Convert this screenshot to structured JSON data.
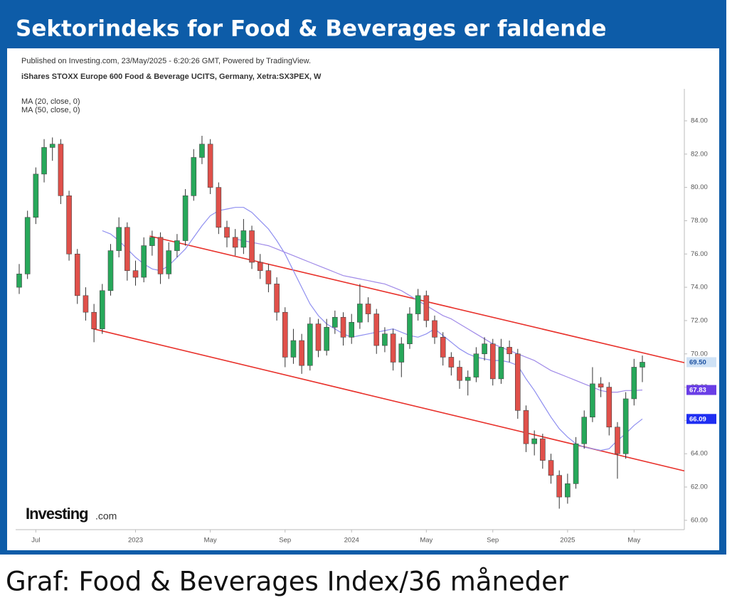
{
  "header": {
    "title": "Sektorindeks for Food & Beverages er faldende"
  },
  "chart_data": {
    "type": "candlestick",
    "source": "Published on Investing.com, 23/May/2025 - 6:20:26 GMT, Powered by TradingView.",
    "instrument": "iShares STOXX Europe 600 Food & Beverage UCITS, Germany, Xetra:SX3PEX, W",
    "categories": [
      null,
      null,
      "Jul",
      null,
      null,
      null,
      null,
      null,
      null,
      null,
      null,
      null,
      null,
      null,
      "2023",
      null,
      null,
      null,
      null,
      null,
      null,
      null,
      null,
      "May",
      null,
      null,
      null,
      null,
      null,
      null,
      null,
      null,
      "Sep",
      null,
      null,
      null,
      null,
      null,
      null,
      null,
      "2024",
      null,
      null,
      null,
      null,
      null,
      null,
      null,
      null,
      "May",
      null,
      null,
      null,
      null,
      null,
      null,
      null,
      "Sep",
      null,
      null,
      null,
      null,
      null,
      null,
      null,
      null,
      "2025",
      null,
      null,
      null,
      null,
      null,
      null,
      null,
      "May",
      null
    ],
    "open": [
      74.0,
      74.8,
      78.2,
      80.8,
      82.4,
      82.6,
      79.5,
      76.0,
      73.5,
      72.5,
      71.5,
      73.8,
      76.2,
      77.6,
      75.0,
      74.6,
      76.5,
      77.0,
      74.8,
      76.2,
      76.8,
      79.5,
      81.8,
      82.6,
      80.0,
      77.6,
      77.0,
      76.4,
      77.4,
      75.5,
      75.0,
      74.2,
      72.5,
      69.8,
      70.8,
      69.3,
      71.8,
      70.2,
      71.6,
      72.2,
      71.0,
      71.9,
      73.0,
      72.4,
      70.5,
      71.2,
      69.5,
      70.6,
      72.4,
      73.5,
      72.0,
      71.0,
      69.8,
      69.2,
      68.4,
      68.6,
      70.0,
      70.6,
      68.5,
      70.4,
      70.0,
      66.6,
      64.6,
      64.9,
      63.6,
      62.7,
      61.4,
      62.2,
      64.6,
      66.2,
      68.2,
      68.0,
      65.6,
      64.0,
      67.3,
      69.2
    ],
    "high": [
      75.4,
      78.6,
      81.2,
      82.9,
      83.0,
      82.9,
      79.8,
      76.3,
      74.0,
      73.0,
      74.2,
      76.6,
      78.2,
      77.9,
      75.6,
      77.0,
      77.4,
      77.3,
      76.7,
      77.2,
      79.9,
      82.3,
      83.1,
      82.9,
      80.3,
      78.0,
      77.5,
      78.1,
      77.7,
      76.0,
      75.4,
      74.6,
      72.8,
      71.5,
      71.2,
      72.2,
      72.1,
      72.1,
      72.6,
      72.5,
      72.4,
      74.2,
      73.4,
      72.7,
      71.6,
      71.5,
      71.0,
      72.8,
      73.9,
      73.8,
      72.3,
      71.3,
      70.1,
      69.6,
      69.0,
      70.4,
      71.0,
      70.9,
      70.9,
      70.8,
      70.3,
      66.9,
      65.4,
      65.2,
      64.0,
      63.0,
      62.8,
      65.0,
      66.6,
      69.2,
      68.6,
      68.3,
      65.9,
      67.7,
      69.7,
      69.9
    ],
    "low": [
      73.6,
      74.5,
      77.8,
      80.3,
      81.6,
      79.0,
      75.6,
      73.0,
      72.0,
      70.7,
      71.2,
      73.5,
      75.8,
      74.4,
      74.1,
      74.3,
      75.9,
      74.2,
      74.5,
      75.8,
      76.5,
      79.2,
      81.4,
      79.6,
      77.2,
      76.4,
      75.9,
      76.0,
      75.1,
      74.5,
      73.7,
      72.0,
      69.2,
      69.4,
      68.8,
      69.0,
      69.8,
      69.9,
      71.2,
      70.5,
      70.6,
      71.5,
      71.9,
      70.0,
      70.1,
      69.0,
      68.6,
      70.3,
      72.0,
      71.6,
      70.6,
      69.3,
      68.7,
      67.9,
      67.5,
      68.3,
      69.6,
      68.1,
      68.2,
      69.5,
      66.1,
      64.1,
      63.9,
      63.1,
      62.2,
      60.7,
      61.0,
      61.9,
      64.3,
      65.9,
      67.4,
      65.1,
      62.5,
      63.7,
      66.9,
      68.3
    ],
    "close": [
      74.8,
      78.2,
      80.8,
      82.4,
      82.6,
      79.5,
      76.0,
      73.5,
      72.5,
      71.5,
      73.8,
      76.2,
      77.6,
      75.0,
      74.6,
      76.5,
      77.0,
      74.8,
      76.2,
      76.8,
      79.5,
      81.8,
      82.6,
      80.0,
      77.6,
      77.0,
      76.4,
      77.4,
      75.5,
      75.0,
      74.2,
      72.5,
      69.8,
      70.8,
      69.3,
      71.8,
      70.2,
      71.6,
      72.2,
      71.0,
      71.9,
      73.0,
      72.4,
      70.5,
      71.2,
      69.5,
      70.6,
      72.4,
      73.5,
      72.0,
      71.0,
      69.8,
      69.2,
      68.4,
      68.6,
      70.0,
      70.6,
      68.5,
      70.4,
      70.0,
      66.6,
      64.6,
      64.9,
      63.6,
      62.7,
      61.4,
      62.2,
      64.6,
      66.2,
      68.2,
      68.0,
      65.6,
      64.0,
      67.3,
      69.2,
      69.5
    ],
    "up_color": "#27a85a",
    "down_color": "#e0504a",
    "last_label": {
      "value": 69.5,
      "label": "69.50"
    },
    "last_label_color": "#cfe2f6",
    "series": [
      {
        "name": "MA (20, close, 0)",
        "color": "#8f8ff0",
        "values": [
          null,
          null,
          null,
          null,
          null,
          null,
          null,
          null,
          null,
          null,
          77.4,
          77.2,
          76.8,
          76.3,
          75.8,
          75.4,
          75.1,
          75.0,
          75.3,
          75.8,
          76.3,
          77.0,
          77.7,
          78.3,
          78.6,
          78.7,
          78.8,
          78.8,
          78.5,
          78.0,
          77.5,
          76.8,
          76.0,
          75.0,
          74.0,
          73.0,
          72.3,
          71.8,
          71.5,
          71.2,
          71.0,
          71.1,
          71.2,
          71.3,
          71.4,
          71.5,
          71.3,
          71.1,
          71.0,
          71.2,
          71.5,
          71.1,
          70.7,
          70.3,
          70.0,
          69.8,
          69.7,
          69.6,
          69.6,
          69.5,
          69.3,
          68.5,
          67.8,
          67.0,
          66.2,
          65.5,
          65.0,
          64.6,
          64.4,
          64.3,
          64.2,
          64.3,
          64.8,
          65.2,
          65.7,
          66.09
        ],
        "last_label": {
          "value": 66.09,
          "label": "66.09"
        },
        "label_color": "#1f2ef2"
      },
      {
        "name": "MA (50, close, 0)",
        "color": "#a08ae8",
        "values": [
          null,
          null,
          null,
          null,
          null,
          null,
          null,
          null,
          null,
          null,
          null,
          null,
          null,
          null,
          null,
          null,
          null,
          null,
          null,
          null,
          null,
          null,
          null,
          null,
          null,
          null,
          76.9,
          76.8,
          76.7,
          76.6,
          76.5,
          76.3,
          76.1,
          75.9,
          75.7,
          75.5,
          75.3,
          75.1,
          74.9,
          74.7,
          74.6,
          74.5,
          74.4,
          74.3,
          74.2,
          74.0,
          73.8,
          73.5,
          73.2,
          72.9,
          72.6,
          72.3,
          72.1,
          71.8,
          71.5,
          71.2,
          70.9,
          70.6,
          70.4,
          70.2,
          70.0,
          69.8,
          69.6,
          69.3,
          69.0,
          68.8,
          68.6,
          68.4,
          68.2,
          68.0,
          67.8,
          67.7,
          67.7,
          67.8,
          67.8,
          67.83
        ],
        "last_label": {
          "value": 67.83,
          "label": "67.83"
        },
        "label_color": "#6a3ee6"
      }
    ],
    "trendlines": [
      {
        "color": "#e8302a",
        "x": [
          15.7,
          80.05
        ],
        "y": [
          77.08,
          69.47
        ]
      },
      {
        "color": "#e8302a",
        "x": [
          8.8,
          80.05
        ],
        "y": [
          71.52,
          62.97
        ]
      }
    ],
    "ylim": [
      59.44,
      85.92
    ],
    "yticks": [
      {
        "value": 60,
        "label": "60.00"
      },
      {
        "value": 62,
        "label": "62.00"
      },
      {
        "value": 64,
        "label": "64.00"
      },
      {
        "value": 66,
        "label": "66.00"
      },
      {
        "value": 68,
        "label": "68.00"
      },
      {
        "value": 70,
        "label": "70.00"
      },
      {
        "value": 72,
        "label": "72.00"
      },
      {
        "value": 74,
        "label": "74.00"
      },
      {
        "value": 76,
        "label": "76.00"
      },
      {
        "value": 78,
        "label": "78.00"
      },
      {
        "value": 80,
        "label": "80.00"
      },
      {
        "value": 82,
        "label": "82.00"
      },
      {
        "value": 84,
        "label": "84.00"
      }
    ],
    "grid": false
  },
  "logo": {
    "text": "Investing",
    "suffix": ".com"
  },
  "caption": "Graf: Food & Beverages Index/36 måneder"
}
